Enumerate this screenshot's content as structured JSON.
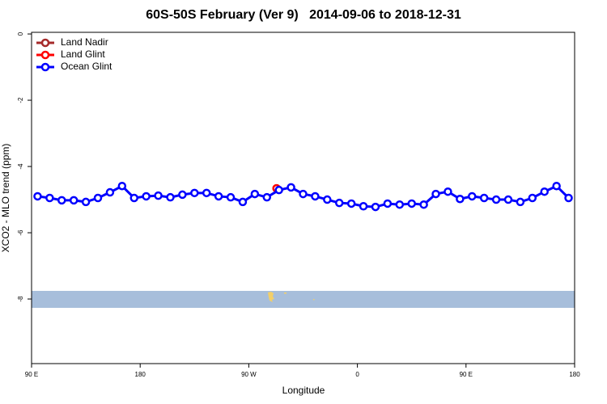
{
  "chart_data": {
    "type": "line",
    "title": "60S-50S February (Ver 9)   2014-09-06 to 2018-12-31",
    "xlabel": "Longitude",
    "ylabel": "XCO2 - MLO trend (ppm)",
    "xlim": [
      90,
      540
    ],
    "xticks": [
      {
        "value": 90,
        "label": "90 E"
      },
      180,
      {
        "value": 270,
        "label": "90 W"
      },
      {
        "value": 360,
        "label": "0"
      },
      {
        "value": 450,
        "label": "90 E"
      },
      {
        "value": 540,
        "label": "180"
      }
    ],
    "ylim": [
      -9.95,
      0.05
    ],
    "yticks": [
      0,
      -2,
      -4,
      -6,
      -8
    ],
    "legend": "top-left",
    "series": [
      {
        "name": "Land Nadir",
        "color": "#a52a2a",
        "x": [
          293
        ],
        "values": [
          -4.66
        ]
      },
      {
        "name": "Land Glint",
        "color": "#ff0000",
        "x": [
          293
        ],
        "values": [
          -4.66
        ]
      },
      {
        "name": "Ocean Glint",
        "color": "#0000ff",
        "x": [
          95,
          105,
          115,
          125,
          135,
          145,
          155,
          165,
          175,
          185,
          195,
          205,
          215,
          225,
          235,
          245,
          255,
          265,
          275,
          285,
          295,
          305,
          315,
          325,
          335,
          345,
          355,
          365,
          375,
          385,
          395,
          405,
          415,
          425,
          435,
          445,
          455,
          465,
          475,
          485,
          495,
          505,
          515,
          525,
          535
        ],
        "values": [
          -4.9,
          -4.95,
          -5.02,
          -5.02,
          -5.07,
          -4.95,
          -4.78,
          -4.59,
          -4.95,
          -4.9,
          -4.88,
          -4.93,
          -4.85,
          -4.8,
          -4.8,
          -4.9,
          -4.93,
          -5.07,
          -4.83,
          -4.93,
          -4.71,
          -4.63,
          -4.83,
          -4.9,
          -5.0,
          -5.1,
          -5.12,
          -5.2,
          -5.22,
          -5.12,
          -5.15,
          -5.12,
          -5.15,
          -4.83,
          -4.76,
          -4.98,
          -4.9,
          -4.95,
          -5.0,
          -5.0,
          -5.07,
          -4.95,
          -4.76,
          -4.59,
          -4.95
        ]
      }
    ]
  }
}
